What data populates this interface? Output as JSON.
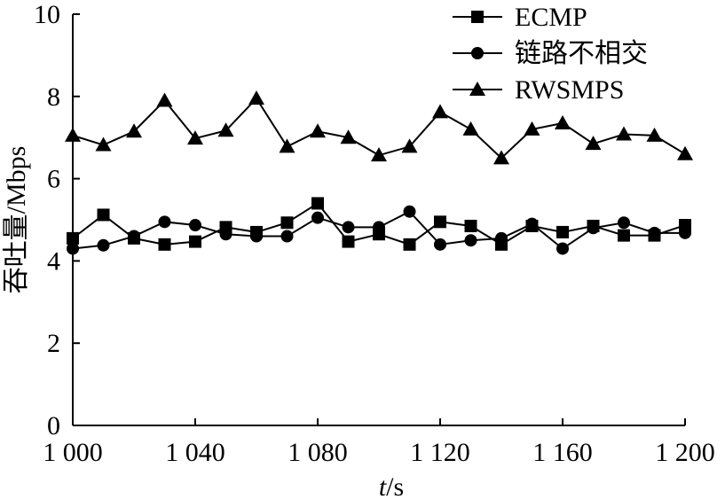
{
  "chart_data": {
    "type": "line",
    "xlabel": {
      "italic": "t",
      "rest": "/s"
    },
    "ylabel": "吞吐量/Mbps",
    "xlim": [
      1000,
      1200
    ],
    "ylim": [
      0,
      10
    ],
    "x_ticks": [
      1000,
      1040,
      1080,
      1120,
      1160,
      1200
    ],
    "x_tick_labels": [
      "1 000",
      "1 040",
      "1 080",
      "1 120",
      "1 160",
      "1 200"
    ],
    "y_ticks": [
      0,
      2,
      4,
      6,
      8,
      10
    ],
    "y_tick_labels": [
      "0",
      "2",
      "4",
      "6",
      "8",
      "10"
    ],
    "grid": false,
    "legend_position": "top-right",
    "x": [
      1000,
      1010,
      1020,
      1030,
      1040,
      1050,
      1060,
      1070,
      1080,
      1090,
      1100,
      1110,
      1120,
      1130,
      1140,
      1150,
      1160,
      1170,
      1180,
      1190,
      1200
    ],
    "series": [
      {
        "name": "ECMP",
        "marker": "square",
        "values": [
          4.55,
          5.12,
          4.55,
          4.4,
          4.47,
          4.82,
          4.7,
          4.93,
          5.4,
          4.47,
          4.65,
          4.4,
          4.95,
          4.85,
          4.4,
          4.85,
          4.7,
          4.85,
          4.62,
          4.62,
          4.87
        ]
      },
      {
        "name": "链路不相交",
        "marker": "circle",
        "values": [
          4.3,
          4.38,
          4.6,
          4.95,
          4.87,
          4.65,
          4.6,
          4.6,
          5.05,
          4.82,
          4.82,
          5.2,
          4.4,
          4.5,
          4.55,
          4.9,
          4.3,
          4.8,
          4.93,
          4.68,
          4.68
        ]
      },
      {
        "name": "RWSMPS",
        "marker": "triangle",
        "values": [
          7.05,
          6.82,
          7.15,
          7.9,
          6.98,
          7.17,
          7.95,
          6.78,
          7.15,
          7.0,
          6.57,
          6.78,
          7.62,
          7.2,
          6.5,
          7.2,
          7.35,
          6.85,
          7.08,
          7.05,
          6.6
        ]
      }
    ]
  }
}
